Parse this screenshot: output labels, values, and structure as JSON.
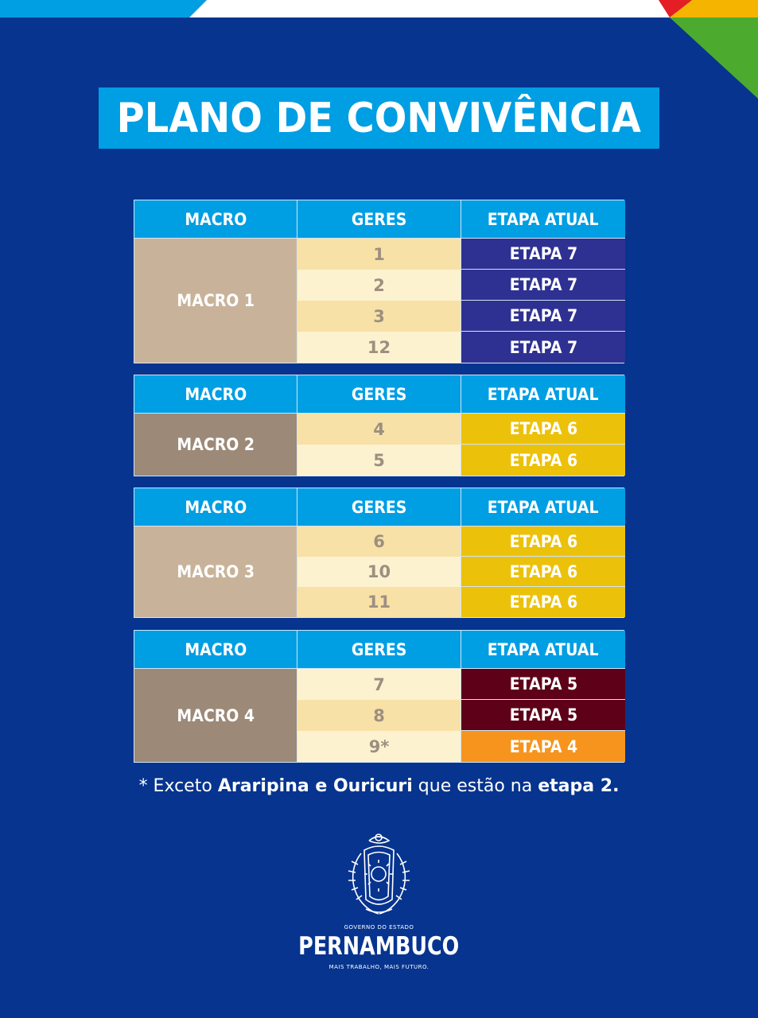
{
  "title": "PLANO DE CONVIVÊNCIA",
  "headers": {
    "macro": "MACRO",
    "geres": "GERES",
    "etapa": "ETAPA ATUAL"
  },
  "groups": [
    {
      "macro": "MACRO 1",
      "rows": [
        {
          "geres": "1",
          "etapa": "ETAPA 7"
        },
        {
          "geres": "2",
          "etapa": "ETAPA 7"
        },
        {
          "geres": "3",
          "etapa": "ETAPA 7"
        },
        {
          "geres": "12",
          "etapa": "ETAPA 7"
        }
      ]
    },
    {
      "macro": "MACRO 2",
      "rows": [
        {
          "geres": "4",
          "etapa": "ETAPA 6"
        },
        {
          "geres": "5",
          "etapa": "ETAPA 6"
        }
      ]
    },
    {
      "macro": "MACRO 3",
      "rows": [
        {
          "geres": "6",
          "etapa": "ETAPA 6"
        },
        {
          "geres": "10",
          "etapa": "ETAPA 6"
        },
        {
          "geres": "11",
          "etapa": "ETAPA 6"
        }
      ]
    },
    {
      "macro": "MACRO 4",
      "rows": [
        {
          "geres": "7",
          "etapa": "ETAPA 5"
        },
        {
          "geres": "8",
          "etapa": "ETAPA 5"
        },
        {
          "geres": "9*",
          "etapa": "ETAPA 4"
        }
      ]
    }
  ],
  "note": {
    "prefix": "* Exceto ",
    "places": "Araripina e Ouricuri",
    "middle": " que estão na ",
    "stage": "etapa 2."
  },
  "logo": {
    "top_text": "GOVERNO DO ESTADO",
    "name": "PERNAMBUCO",
    "slogan": "MAIS TRABALHO, MAIS FUTURO."
  },
  "colors": {
    "background": "#06348f",
    "header": "#009ee3",
    "etapa_7": "#2e3192",
    "etapa_6": "#ecc10a",
    "etapa_5": "#5d0018",
    "etapa_4": "#f7941d"
  }
}
